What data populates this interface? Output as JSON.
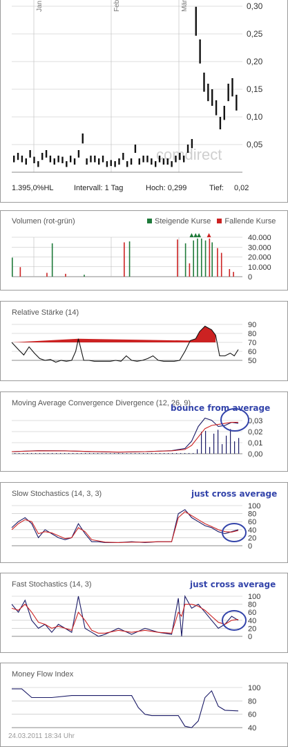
{
  "price": {
    "months": [
      "Jan",
      "Feb",
      "Mär"
    ],
    "yticks": [
      "0,30",
      "0,25",
      "0,20",
      "0,15",
      "0,10",
      "0,05"
    ],
    "watermark": "comdirect",
    "stats": {
      "range": "1.395,0%HL",
      "interval": "Intervall: 1 Tag",
      "high": "Hoch: 0,299",
      "low": "Tief:",
      "low_value": "0,02"
    }
  },
  "volume": {
    "title": "Volumen (rot-grün)",
    "legend_up": "Steigende Kurse",
    "legend_down": "Fallende Kurse",
    "yticks": [
      "40.000",
      "30.000",
      "20.000",
      "10.000",
      "0"
    ]
  },
  "rsi": {
    "title": "Relative Stärke (14)",
    "yticks": [
      "90",
      "80",
      "70",
      "60",
      "50"
    ]
  },
  "macd": {
    "title": "Moving Average Convergence Divergence (12, 26, 9)",
    "note": "bounce from average",
    "yticks": [
      "0,03",
      "0,02",
      "0,01",
      "0,00"
    ]
  },
  "slow_stoch": {
    "title": "Slow Stochastics (14, 3, 3)",
    "note": "just cross average",
    "yticks": [
      "100",
      "80",
      "60",
      "40",
      "20",
      "0"
    ]
  },
  "fast_stoch": {
    "title": "Fast Stochastics (14, 3)",
    "note": "just cross average",
    "yticks": [
      "100",
      "80",
      "60",
      "40",
      "20",
      "0"
    ]
  },
  "mfi": {
    "title": "Money Flow Index",
    "yticks": [
      "100",
      "80",
      "60",
      "40"
    ]
  },
  "footer": {
    "timestamp": "24.03.2011 18:34 Uhr"
  },
  "colors": {
    "up": "#1f7a3a",
    "down": "#cc2222",
    "line": "#1a1a66",
    "signal": "#cc2222",
    "annotation": "#3344aa",
    "grid": "#bbbbbb"
  },
  "chart_data": [
    {
      "type": "bar",
      "title": "",
      "y_label": "price",
      "ylim": [
        0,
        0.3
      ],
      "x_labels": [
        "Jan",
        "Feb",
        "Mär"
      ],
      "values": [
        0.03,
        0.035,
        0.03,
        0.025,
        0.04,
        0.028,
        0.02,
        0.035,
        0.04,
        0.03,
        0.025,
        0.03,
        0.028,
        0.02,
        0.03,
        0.025,
        0.04,
        0.07,
        0.025,
        0.03,
        0.03,
        0.025,
        0.03,
        0.02,
        0.022,
        0.02,
        0.025,
        0.035,
        0.02,
        0.025,
        0.05,
        0.025,
        0.03,
        0.03,
        0.025,
        0.02,
        0.03,
        0.025,
        0.025,
        0.02,
        0.03,
        0.035,
        0.03,
        0.05,
        0.06,
        0.299,
        0.24,
        0.18,
        0.16,
        0.15,
        0.13,
        0.1,
        0.12,
        0.16,
        0.17,
        0.14
      ]
    },
    {
      "type": "bar",
      "title": "Volumen (rot-grün)",
      "ylim": [
        0,
        45000
      ],
      "series": [
        {
          "name": "Steigende Kurse",
          "points": [
            [
              0,
              20000
            ],
            [
              60,
              35000
            ],
            [
              108,
              2000
            ],
            [
              176,
              37000
            ],
            [
              260,
              35000
            ],
            [
              272,
              38000
            ],
            [
              278,
              40000
            ],
            [
              284,
              40000
            ],
            [
              290,
              38000
            ],
            [
              300,
              36000
            ]
          ]
        },
        {
          "name": "Fallende Kurse",
          "points": [
            [
              12,
              10000
            ],
            [
              52,
              4000
            ],
            [
              80,
              3000
            ],
            [
              168,
              36000
            ],
            [
              248,
              39000
            ],
            [
              266,
              14000
            ],
            [
              296,
              40000
            ],
            [
              308,
              30000
            ],
            [
              314,
              25000
            ],
            [
              326,
              8000
            ],
            [
              332,
              5000
            ]
          ]
        }
      ]
    },
    {
      "type": "area",
      "title": "Relative Stärke (14)",
      "ylim": [
        45,
        92
      ],
      "x": [
        0,
        10,
        18,
        26,
        34,
        42,
        50,
        58,
        66,
        74,
        82,
        90,
        96,
        100,
        108,
        116,
        124,
        132,
        140,
        148,
        156,
        164,
        172,
        180,
        188,
        196,
        204,
        212,
        220,
        228,
        236,
        244,
        252,
        260,
        268,
        276,
        282,
        290,
        300,
        306,
        312,
        320,
        328,
        334,
        340
      ],
      "values": [
        70,
        62,
        56,
        65,
        58,
        52,
        50,
        51,
        48,
        50,
        49,
        50,
        60,
        74,
        50,
        50,
        49,
        49,
        49,
        49,
        50,
        49,
        55,
        50,
        49,
        50,
        52,
        55,
        50,
        49,
        49,
        49,
        50,
        60,
        72,
        74,
        82,
        88,
        84,
        78,
        55,
        55,
        58,
        55,
        62
      ]
    },
    {
      "type": "line",
      "title": "Moving Average Convergence Divergence (12, 26, 9)",
      "ylim": [
        -0.002,
        0.035
      ],
      "x": [
        0,
        40,
        80,
        120,
        160,
        200,
        240,
        260,
        270,
        280,
        290,
        300,
        310,
        320,
        330,
        340
      ],
      "series": [
        {
          "name": "",
          "values": [
            0.0,
            0.001,
            0.0008,
            0.0,
            -0.0005,
            0.0,
            0.001,
            0.003,
            0.01,
            0.024,
            0.032,
            0.03,
            0.024,
            0.025,
            0.028,
            0.027
          ]
        },
        {
          "name": "",
          "values": [
            0.0,
            0.0008,
            0.0007,
            0.0001,
            -0.0004,
            0.0,
            0.0008,
            0.002,
            0.006,
            0.014,
            0.022,
            0.025,
            0.026,
            0.027,
            0.028,
            0.028
          ]
        }
      ]
    },
    {
      "type": "line",
      "title": "Slow Stochastics (14, 3, 3)",
      "ylim": [
        0,
        100
      ],
      "x": [
        0,
        10,
        20,
        30,
        40,
        50,
        60,
        70,
        80,
        90,
        100,
        110,
        120,
        130,
        140,
        160,
        180,
        200,
        220,
        240,
        250,
        260,
        270,
        280,
        290,
        300,
        310,
        320,
        330,
        340
      ],
      "series": [
        {
          "name": "",
          "values": [
            45,
            60,
            70,
            55,
            20,
            40,
            30,
            20,
            15,
            20,
            55,
            30,
            10,
            10,
            8,
            8,
            10,
            8,
            10,
            10,
            80,
            90,
            70,
            60,
            50,
            45,
            35,
            30,
            35,
            40
          ]
        },
        {
          "name": "",
          "values": [
            40,
            55,
            65,
            60,
            30,
            35,
            32,
            25,
            18,
            20,
            45,
            35,
            15,
            12,
            9,
            8,
            9,
            9,
            10,
            10,
            70,
            85,
            75,
            65,
            55,
            48,
            40,
            35,
            34,
            38
          ]
        }
      ]
    },
    {
      "type": "line",
      "title": "Fast Stochastics (14, 3)",
      "ylim": [
        0,
        100
      ],
      "x": [
        0,
        10,
        20,
        30,
        40,
        50,
        60,
        70,
        80,
        90,
        100,
        110,
        120,
        130,
        140,
        160,
        180,
        200,
        220,
        240,
        250,
        255,
        260,
        270,
        280,
        290,
        300,
        310,
        320,
        330,
        340
      ],
      "series": [
        {
          "name": "",
          "values": [
            80,
            60,
            90,
            40,
            20,
            30,
            10,
            30,
            20,
            10,
            100,
            20,
            10,
            0,
            5,
            20,
            5,
            20,
            10,
            5,
            95,
            0,
            100,
            70,
            80,
            60,
            40,
            20,
            30,
            50,
            40
          ]
        },
        {
          "name": "",
          "values": [
            70,
            65,
            80,
            60,
            35,
            30,
            20,
            25,
            20,
            15,
            60,
            40,
            15,
            8,
            8,
            15,
            10,
            15,
            10,
            8,
            60,
            50,
            80,
            80,
            75,
            65,
            50,
            35,
            30,
            40,
            42
          ]
        }
      ]
    },
    {
      "type": "line",
      "title": "Money Flow Index",
      "ylim": [
        35,
        105
      ],
      "x": [
        0,
        15,
        30,
        60,
        90,
        120,
        150,
        170,
        180,
        190,
        200,
        210,
        230,
        250,
        260,
        270,
        280,
        290,
        300,
        310,
        320,
        340
      ],
      "values": [
        98,
        98,
        85,
        85,
        88,
        88,
        88,
        88,
        88,
        70,
        60,
        58,
        58,
        58,
        42,
        40,
        50,
        85,
        95,
        72,
        66,
        65
      ]
    }
  ]
}
